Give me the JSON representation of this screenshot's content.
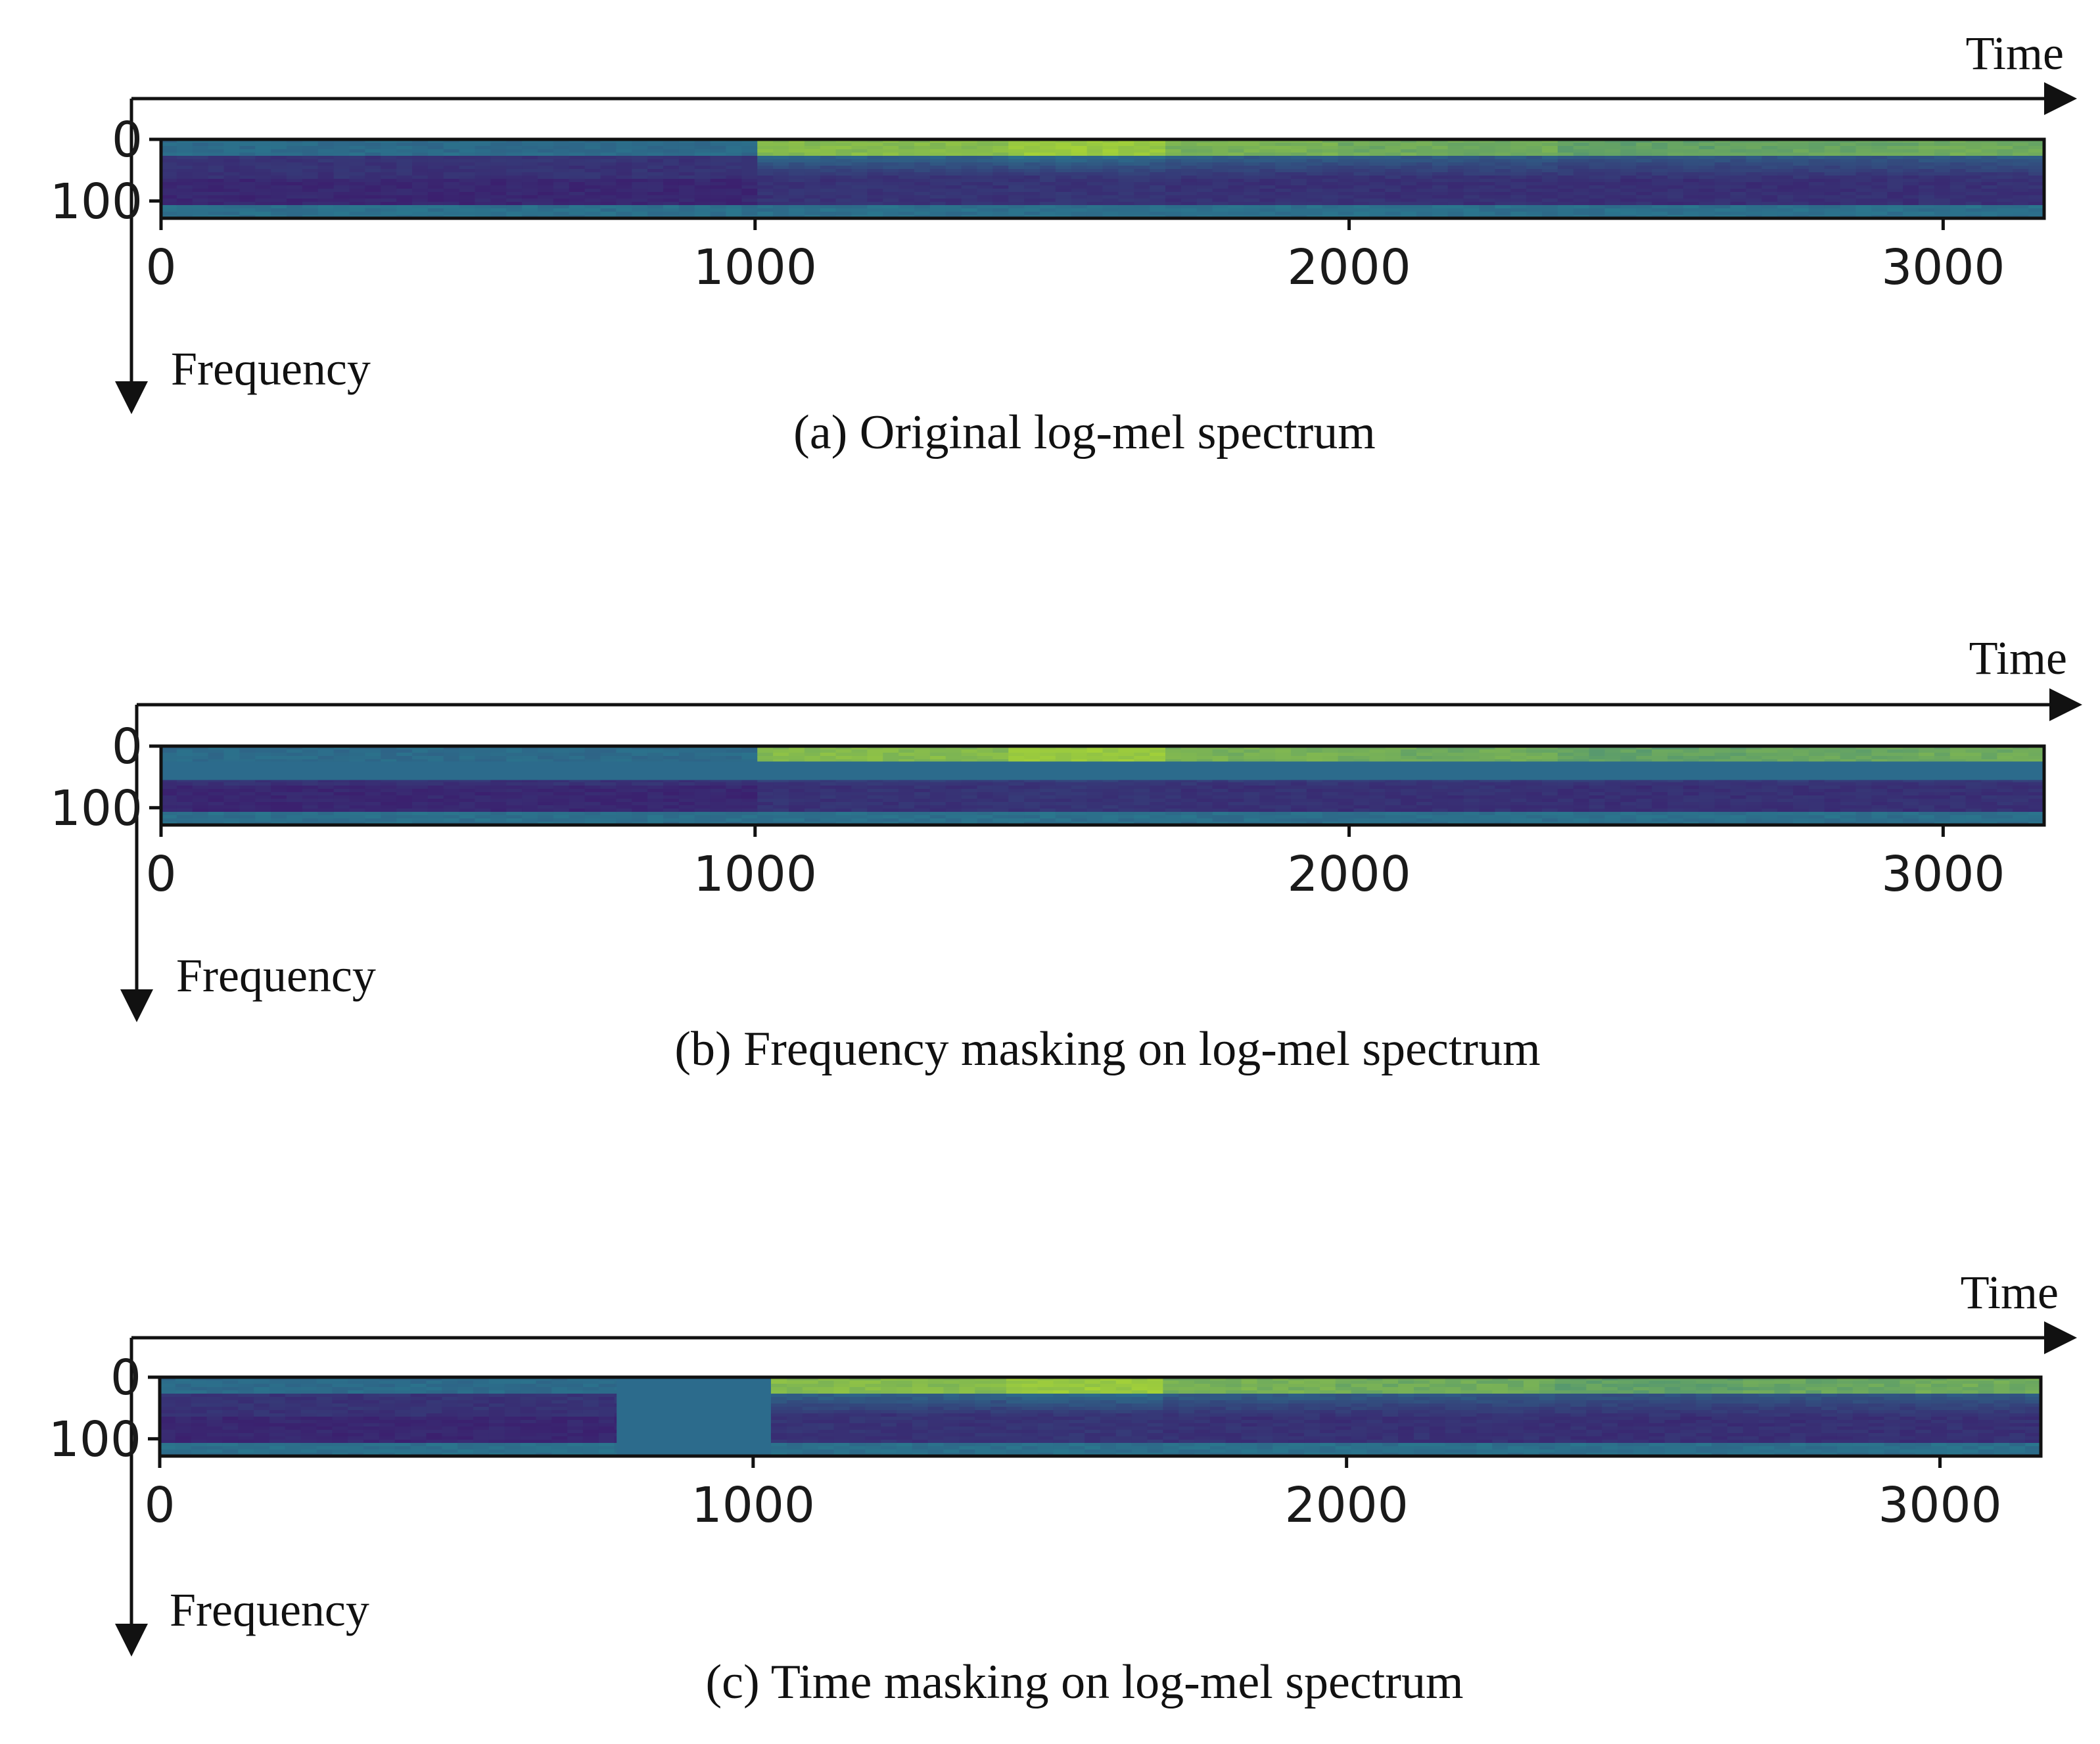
{
  "panels": [
    {
      "id": "a",
      "caption": "(a) Original  log-mel  spectrum",
      "x_axis_title": "Time",
      "y_axis_title": "Frequency",
      "mask": "none"
    },
    {
      "id": "b",
      "caption": "(b) Frequency masking  on log-mel  spectrum",
      "x_axis_title": "Time",
      "y_axis_title": "Frequency",
      "mask": "frequency",
      "mask_freq_range": [
        25,
        55
      ]
    },
    {
      "id": "c",
      "caption": "(c) Time masking  on log-mel  spectrum",
      "x_axis_title": "Time",
      "y_axis_title": "Frequency",
      "mask": "time",
      "mask_time_range": [
        770,
        1030
      ]
    }
  ],
  "axes": {
    "x_ticks": [
      "0",
      "1000",
      "2000",
      "3000"
    ],
    "y_ticks": [
      "0",
      "100"
    ],
    "x_range": [
      0,
      3170
    ],
    "y_range": [
      0,
      128
    ],
    "y_inverted": true
  },
  "colormap": {
    "dark": "#3b1f6e",
    "mid": "#2a788e",
    "bright": "#b5de2b",
    "mask_value": "#2c6b8c"
  },
  "segments": [
    {
      "t0": 0,
      "t1": 1000,
      "energy": 0.05
    },
    {
      "t0": 1000,
      "t1": 1420,
      "energy": 0.85
    },
    {
      "t0": 1420,
      "t1": 1680,
      "energy": 1.0
    },
    {
      "t0": 1680,
      "t1": 1990,
      "energy": 0.75
    },
    {
      "t0": 1990,
      "t1": 2340,
      "energy": 0.7
    },
    {
      "t0": 2340,
      "t1": 2680,
      "energy": 0.6
    },
    {
      "t0": 2680,
      "t1": 2960,
      "energy": 0.65
    },
    {
      "t0": 2960,
      "t1": 3170,
      "energy": 0.7
    }
  ]
}
